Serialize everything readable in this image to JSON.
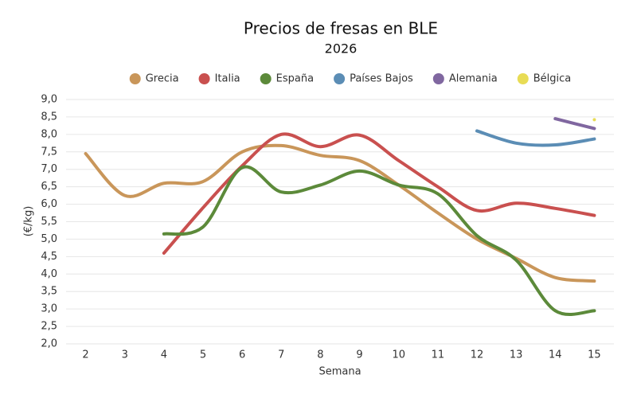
{
  "chart_data": {
    "type": "line",
    "title": "Precios de fresas en BLE",
    "subtitle": "2026",
    "x_label": "Semana",
    "y_label": "(€/kg)",
    "categories": [
      "2",
      "3",
      "4",
      "5",
      "6",
      "7",
      "8",
      "9",
      "10",
      "11",
      "12",
      "13",
      "14",
      "15"
    ],
    "series": [
      {
        "name": "Grecia",
        "color": "#c9965a",
        "values": [
          7.45,
          6.25,
          6.6,
          6.65,
          7.5,
          7.68,
          7.4,
          7.25,
          6.55,
          5.75,
          5.0,
          4.45,
          3.9,
          3.8
        ]
      },
      {
        "name": "Italia",
        "color": "#c9504f",
        "values": [
          null,
          null,
          4.6,
          5.9,
          7.1,
          8.0,
          7.65,
          7.98,
          7.25,
          6.5,
          5.82,
          6.03,
          5.88,
          5.68
        ]
      },
      {
        "name": "España",
        "color": "#5c8a3a",
        "values": [
          null,
          null,
          5.15,
          5.35,
          7.05,
          6.35,
          6.55,
          6.95,
          6.55,
          6.3,
          5.1,
          4.4,
          2.95,
          2.95
        ]
      },
      {
        "name": "Países Bajos",
        "color": "#5b8db5",
        "values": [
          null,
          null,
          null,
          null,
          null,
          null,
          null,
          null,
          null,
          null,
          8.1,
          7.75,
          7.7,
          7.87
        ]
      },
      {
        "name": "Alemania",
        "color": "#8067a0",
        "values": [
          null,
          null,
          null,
          null,
          null,
          null,
          null,
          null,
          null,
          null,
          null,
          null,
          8.45,
          8.17
        ]
      },
      {
        "name": "Bélgica",
        "color": "#e8dc55",
        "values": [
          null,
          null,
          null,
          null,
          null,
          null,
          null,
          null,
          null,
          null,
          null,
          null,
          null,
          8.42
        ]
      }
    ],
    "ylim": [
      2,
      9
    ],
    "yticks": [
      {
        "value": 2,
        "label": "2,0"
      },
      {
        "value": 2.5,
        "label": "2,5"
      },
      {
        "value": 3,
        "label": "3,0"
      },
      {
        "value": 3.5,
        "label": "3,5"
      },
      {
        "value": 4,
        "label": "4,0"
      },
      {
        "value": 4.5,
        "label": "4,5"
      },
      {
        "value": 5,
        "label": "5,0"
      },
      {
        "value": 5.5,
        "label": "5,5"
      },
      {
        "value": 6,
        "label": "6,0"
      },
      {
        "value": 6.5,
        "label": "6,5"
      },
      {
        "value": 7,
        "label": "7,0"
      },
      {
        "value": 7.5,
        "label": "7,5"
      },
      {
        "value": 8,
        "label": "8,0"
      },
      {
        "value": 8.5,
        "label": "8,5"
      },
      {
        "value": 9,
        "label": "9,0"
      }
    ],
    "grid": true,
    "legend": "top"
  }
}
